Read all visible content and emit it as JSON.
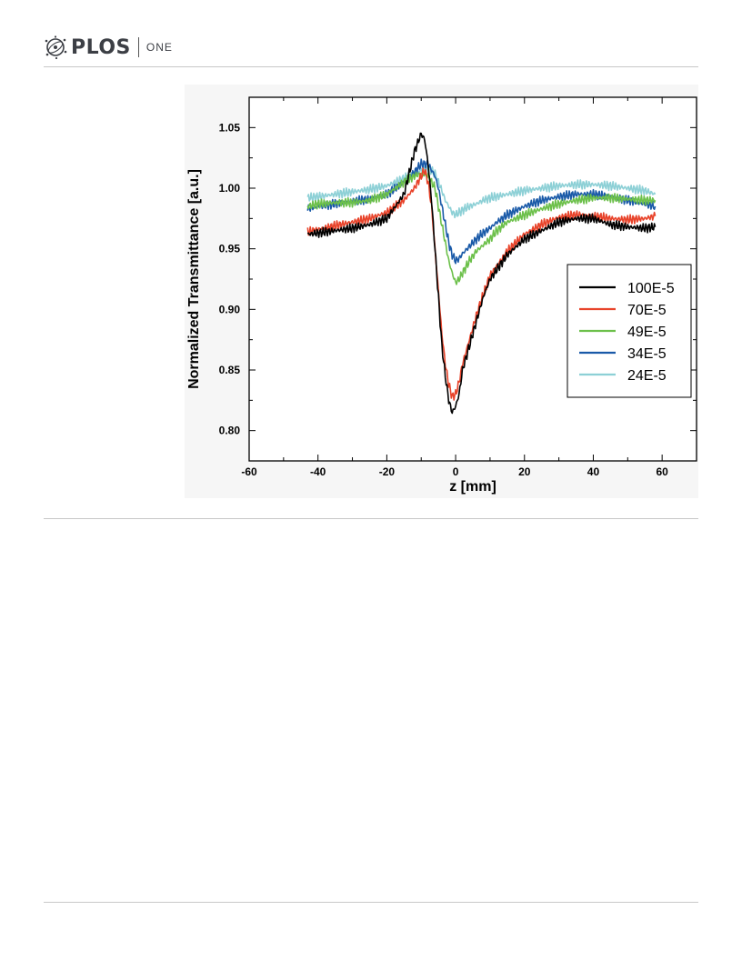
{
  "header": {
    "brand": "PLOS",
    "journal": "ONE"
  },
  "colors": {
    "series_100E-5": "#000000",
    "series_70E-5": "#e8432a",
    "series_49E-5": "#6cc04a",
    "series_34E-5": "#1a5aa8",
    "series_24E-5": "#8dd0d6"
  },
  "chart_data": {
    "type": "line",
    "title": "",
    "xlabel": "z [mm]",
    "ylabel": "Normalized Transmittance [a.u.]",
    "xlim": [
      -60,
      70
    ],
    "ylim": [
      0.775,
      1.075
    ],
    "xticks": [
      -60,
      -40,
      -20,
      0,
      20,
      40,
      60
    ],
    "xtick_labels": [
      "-60",
      "-40",
      "-20",
      "0",
      "20",
      "40",
      "60"
    ],
    "yticks": [
      0.8,
      0.85,
      0.9,
      0.95,
      1.0,
      1.05
    ],
    "ytick_labels": [
      "0.80",
      "0.85",
      "0.90",
      "0.95",
      "1.00",
      "1.05"
    ],
    "grid": false,
    "legend_position": "right-center",
    "series": [
      {
        "name": "100E-5",
        "color": "#000000",
        "x": [
          -43,
          -40,
          -35,
          -30,
          -25,
          -20,
          -15,
          -12,
          -10,
          -9,
          -8,
          -7,
          -6,
          -5,
          -4,
          -3,
          -2,
          -1,
          0,
          1,
          2,
          4,
          6,
          8,
          10,
          15,
          20,
          25,
          30,
          35,
          40,
          45,
          50,
          55,
          58
        ],
        "y": [
          0.962,
          0.963,
          0.965,
          0.967,
          0.97,
          0.975,
          0.995,
          1.03,
          1.045,
          1.04,
          1.02,
          0.99,
          0.95,
          0.91,
          0.87,
          0.845,
          0.825,
          0.815,
          0.82,
          0.83,
          0.85,
          0.87,
          0.89,
          0.91,
          0.925,
          0.945,
          0.958,
          0.965,
          0.972,
          0.975,
          0.975,
          0.97,
          0.968,
          0.967,
          0.968
        ]
      },
      {
        "name": "70E-5",
        "color": "#e8432a",
        "x": [
          -43,
          -40,
          -35,
          -30,
          -25,
          -20,
          -15,
          -12,
          -10,
          -9,
          -8,
          -7,
          -6,
          -5,
          -4,
          -3,
          -2,
          -1,
          0,
          1,
          2,
          4,
          6,
          8,
          10,
          15,
          20,
          25,
          30,
          35,
          40,
          45,
          50,
          55,
          58
        ],
        "y": [
          0.964,
          0.966,
          0.969,
          0.972,
          0.975,
          0.98,
          0.99,
          1.0,
          1.01,
          1.015,
          1.005,
          0.985,
          0.95,
          0.915,
          0.88,
          0.855,
          0.838,
          0.828,
          0.83,
          0.84,
          0.855,
          0.875,
          0.895,
          0.912,
          0.928,
          0.948,
          0.962,
          0.97,
          0.976,
          0.978,
          0.977,
          0.975,
          0.974,
          0.975,
          0.977
        ]
      },
      {
        "name": "49E-5",
        "color": "#6cc04a",
        "x": [
          -43,
          -40,
          -35,
          -30,
          -25,
          -20,
          -15,
          -12,
          -10,
          -8,
          -6,
          -5,
          -4,
          -3,
          -2,
          -1,
          0,
          1,
          2,
          4,
          6,
          8,
          10,
          12,
          15,
          20,
          25,
          30,
          35,
          40,
          45,
          50,
          55,
          58
        ],
        "y": [
          0.985,
          0.987,
          0.988,
          0.988,
          0.99,
          0.995,
          1.005,
          1.01,
          1.012,
          1.01,
          1.0,
          0.985,
          0.97,
          0.955,
          0.94,
          0.93,
          0.922,
          0.925,
          0.93,
          0.94,
          0.948,
          0.953,
          0.958,
          0.965,
          0.972,
          0.978,
          0.983,
          0.987,
          0.99,
          0.992,
          0.992,
          0.991,
          0.99,
          0.99
        ]
      },
      {
        "name": "34E-5",
        "color": "#1a5aa8",
        "x": [
          -43,
          -40,
          -35,
          -30,
          -25,
          -20,
          -15,
          -12,
          -10,
          -8,
          -6,
          -5,
          -4,
          -3,
          -2,
          -1,
          0,
          1,
          2,
          4,
          6,
          8,
          10,
          12,
          15,
          20,
          25,
          30,
          35,
          40,
          45,
          50,
          55,
          58
        ],
        "y": [
          0.983,
          0.985,
          0.987,
          0.989,
          0.991,
          0.995,
          1.005,
          1.013,
          1.02,
          1.02,
          1.01,
          1.0,
          0.985,
          0.97,
          0.955,
          0.945,
          0.94,
          0.942,
          0.946,
          0.952,
          0.958,
          0.963,
          0.967,
          0.972,
          0.978,
          0.985,
          0.99,
          0.993,
          0.995,
          0.995,
          0.993,
          0.99,
          0.987,
          0.985
        ]
      },
      {
        "name": "24E-5",
        "color": "#8dd0d6",
        "x": [
          -43,
          -40,
          -35,
          -30,
          -25,
          -20,
          -15,
          -12,
          -10,
          -8,
          -6,
          -5,
          -4,
          -3,
          -2,
          -1,
          0,
          2,
          4,
          6,
          8,
          10,
          15,
          20,
          25,
          30,
          35,
          40,
          45,
          50,
          55,
          58
        ],
        "y": [
          0.992,
          0.993,
          0.995,
          0.997,
          0.999,
          1.002,
          1.008,
          1.012,
          1.015,
          1.016,
          1.012,
          1.005,
          0.998,
          0.99,
          0.985,
          0.98,
          0.978,
          0.982,
          0.985,
          0.987,
          0.99,
          0.992,
          0.995,
          0.998,
          1.0,
          1.002,
          1.003,
          1.003,
          1.002,
          1.0,
          0.998,
          0.995
        ]
      }
    ]
  }
}
